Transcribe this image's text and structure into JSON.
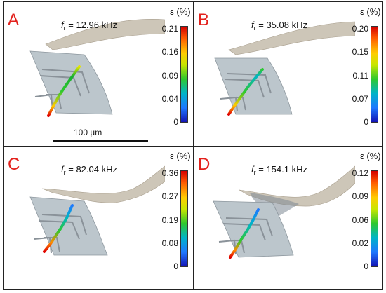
{
  "panels": [
    {
      "letter": "A",
      "freq_symbol": "f",
      "freq_sub": "r",
      "freq_value": " = 12.96 kHz",
      "eps_label": "ε (%)",
      "ticks": [
        "0.21",
        "0.16",
        "0.09",
        "0.04",
        "0"
      ]
    },
    {
      "letter": "B",
      "freq_symbol": "f",
      "freq_sub": "r",
      "freq_value": " = 35.08 kHz",
      "eps_label": "ε (%)",
      "ticks": [
        "0.20",
        "0.15",
        "0.11",
        "0.07",
        "0"
      ]
    },
    {
      "letter": "C",
      "freq_symbol": "f",
      "freq_sub": "r",
      "freq_value": " = 82.04 kHz",
      "eps_label": "ε (%)",
      "ticks": [
        "0.36",
        "0.27",
        "0.19",
        "0.08",
        "0"
      ]
    },
    {
      "letter": "D",
      "freq_symbol": "f",
      "freq_sub": "r",
      "freq_value": " = 154.1 kHz",
      "eps_label": "ε (%)",
      "ticks": [
        "0.12",
        "0.09",
        "0.06",
        "0.02",
        "0"
      ]
    }
  ],
  "scale_bar": {
    "label": "100 µm"
  },
  "colors": {
    "panel_letter": "#e3211c",
    "cantilever": "#b9bfc4",
    "paddle": "#cdc6b8",
    "electrode": "#9aa0a6"
  }
}
